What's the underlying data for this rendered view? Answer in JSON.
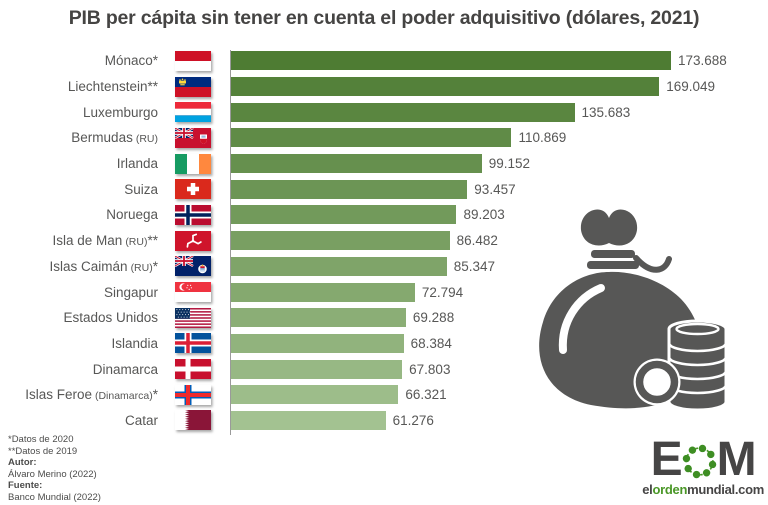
{
  "title": "PIB per cápita sin tener en cuenta el poder adquisitivo (dólares, 2021)",
  "chart_data": {
    "type": "bar",
    "orientation": "horizontal",
    "title": "PIB per cápita sin tener en cuenta el poder adquisitivo (dólares, 2021)",
    "unit": "dólares, 2021",
    "xlim": [
      0,
      173688
    ],
    "grid": false,
    "legend": false,
    "categories": [
      "Mónaco*",
      "Liechtenstein**",
      "Luxemburgo",
      "Bermudas (RU)",
      "Irlanda",
      "Suiza",
      "Noruega",
      "Isla de Man (RU)**",
      "Islas Caimán (RU)*",
      "Singapur",
      "Estados Unidos",
      "Islandia",
      "Dinamarca",
      "Islas Feroe (Dinamarca)*",
      "Catar"
    ],
    "values": [
      173688,
      169049,
      135683,
      110869,
      99152,
      93457,
      89203,
      86482,
      85347,
      72794,
      69288,
      68384,
      67803,
      66321,
      61276
    ],
    "bar_color_start": "#4E7C33",
    "bar_color_end": "#A3C291"
  },
  "bars": [
    {
      "name": "Mónaco",
      "paren": "",
      "stars": "*",
      "flag": "monaco",
      "value": 173688,
      "value_label": "173.688"
    },
    {
      "name": "Liechtenstein",
      "paren": "",
      "stars": "**",
      "flag": "liechtenstein",
      "value": 169049,
      "value_label": "169.049"
    },
    {
      "name": "Luxemburgo",
      "paren": "",
      "stars": "",
      "flag": "luxembourg",
      "value": 135683,
      "value_label": "135.683"
    },
    {
      "name": "Bermudas",
      "paren": "(RU)",
      "stars": "",
      "flag": "bermuda",
      "value": 110869,
      "value_label": "110.869"
    },
    {
      "name": "Irlanda",
      "paren": "",
      "stars": "",
      "flag": "ireland",
      "value": 99152,
      "value_label": "99.152"
    },
    {
      "name": "Suiza",
      "paren": "",
      "stars": "",
      "flag": "switzerland",
      "value": 93457,
      "value_label": "93.457"
    },
    {
      "name": "Noruega",
      "paren": "",
      "stars": "",
      "flag": "norway",
      "value": 89203,
      "value_label": "89.203"
    },
    {
      "name": "Isla de Man",
      "paren": "(RU)",
      "stars": "**",
      "flag": "isleofman",
      "value": 86482,
      "value_label": "86.482"
    },
    {
      "name": "Islas Caimán",
      "paren": "(RU)",
      "stars": "*",
      "flag": "cayman",
      "value": 85347,
      "value_label": "85.347"
    },
    {
      "name": "Singapur",
      "paren": "",
      "stars": "",
      "flag": "singapore",
      "value": 72794,
      "value_label": "72.794"
    },
    {
      "name": "Estados Unidos",
      "paren": "",
      "stars": "",
      "flag": "usa",
      "value": 69288,
      "value_label": "69.288"
    },
    {
      "name": "Islandia",
      "paren": "",
      "stars": "",
      "flag": "iceland",
      "value": 68384,
      "value_label": "68.384"
    },
    {
      "name": "Dinamarca",
      "paren": "",
      "stars": "",
      "flag": "denmark",
      "value": 67803,
      "value_label": "67.803"
    },
    {
      "name": "Islas Feroe",
      "paren": "(Dinamarca)",
      "stars": "*",
      "flag": "faroe",
      "value": 66321,
      "value_label": "66.321"
    },
    {
      "name": "Catar",
      "paren": "",
      "stars": "",
      "flag": "qatar",
      "value": 61276,
      "value_label": "61.276"
    }
  ],
  "notes": {
    "note1": "*Datos de 2020",
    "note2": "**Datos de 2019"
  },
  "credits": {
    "author_label": "Autor:",
    "author": "Álvaro Merino (2022)",
    "source_label": "Fuente:",
    "source": "Banco Mundial (2022)"
  },
  "logo": {
    "letter_e": "E",
    "letter_m": "M",
    "domain_prefix": "el",
    "domain_green": "orden",
    "domain_suffix": "mundial.com"
  },
  "colors": {
    "title": "#454443",
    "text": "#575756",
    "axis": "#9A9A9A",
    "icon": "#575756",
    "logo_dark": "#464545",
    "logo_green": "#4A9727"
  }
}
